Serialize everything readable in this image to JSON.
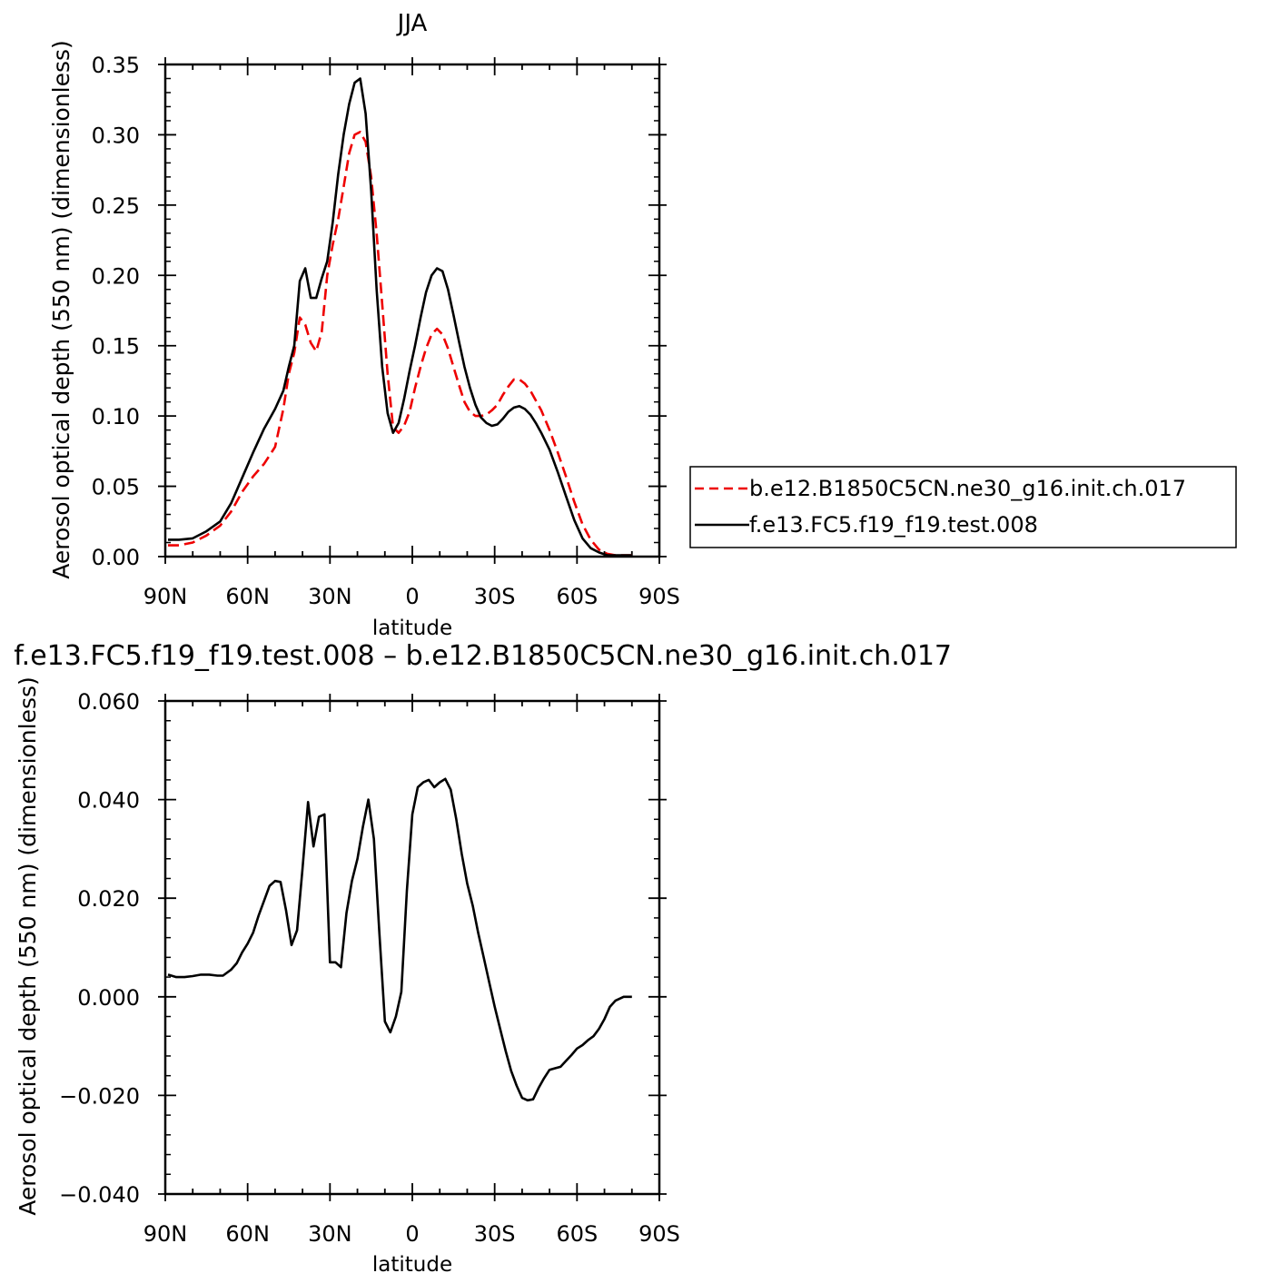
{
  "chart_data": [
    {
      "type": "line",
      "title": "JJA",
      "xlabel": "latitude",
      "ylabel": "Aerosol optical depth (550 nm) (dimensionless)",
      "xlim": [
        90,
        -90
      ],
      "ylim": [
        0,
        0.35
      ],
      "x_ticks": [
        90,
        60,
        30,
        0,
        -30,
        -60,
        -90
      ],
      "x_tick_labels": [
        "90N",
        "60N",
        "30N",
        "0",
        "30S",
        "60S",
        "90S"
      ],
      "y_ticks": [
        0,
        0.05,
        0.1,
        0.15,
        0.2,
        0.25,
        0.3,
        0.35
      ],
      "y_tick_labels": [
        "0.00",
        "0.05",
        "0.10",
        "0.15",
        "0.20",
        "0.25",
        "0.30",
        "0.35"
      ],
      "legend_position": "right",
      "series": [
        {
          "name": "b.e12.B1850C5CN.ne30_g16.init.ch.017",
          "color": "#ee0000",
          "dash": "dashed",
          "x": [
            89,
            85,
            80,
            75,
            70,
            66,
            62,
            58,
            54,
            50,
            47,
            45,
            43,
            41,
            39,
            37,
            35,
            33,
            31,
            29,
            27,
            25,
            23,
            21,
            19,
            17,
            15,
            13,
            11,
            9,
            7,
            5,
            3,
            1,
            -1,
            -3,
            -5,
            -7,
            -9,
            -11,
            -13,
            -15,
            -17,
            -19,
            -21,
            -23,
            -25,
            -27,
            -29,
            -31,
            -33,
            -35,
            -37,
            -39,
            -41,
            -43,
            -45,
            -47,
            -50,
            -53,
            -56,
            -59,
            -62,
            -65,
            -68,
            -71,
            -74,
            -77,
            -80
          ],
          "y": [
            0.008,
            0.008,
            0.01,
            0.015,
            0.022,
            0.032,
            0.046,
            0.057,
            0.066,
            0.078,
            0.105,
            0.13,
            0.145,
            0.17,
            0.165,
            0.152,
            0.146,
            0.16,
            0.2,
            0.222,
            0.24,
            0.263,
            0.287,
            0.3,
            0.302,
            0.295,
            0.27,
            0.23,
            0.18,
            0.13,
            0.092,
            0.088,
            0.093,
            0.103,
            0.12,
            0.135,
            0.148,
            0.158,
            0.162,
            0.158,
            0.148,
            0.135,
            0.122,
            0.11,
            0.103,
            0.1,
            0.1,
            0.101,
            0.104,
            0.108,
            0.115,
            0.121,
            0.126,
            0.126,
            0.123,
            0.118,
            0.111,
            0.104,
            0.09,
            0.074,
            0.057,
            0.039,
            0.023,
            0.012,
            0.005,
            0.002,
            0.001,
            0.001,
            0.001
          ]
        },
        {
          "name": "f.e13.FC5.f19_f19.test.008",
          "color": "#000000",
          "dash": "solid",
          "x": [
            89,
            85,
            80,
            75,
            70,
            66,
            62,
            58,
            54,
            50,
            47,
            45,
            43,
            41,
            39,
            37,
            35,
            33,
            31,
            29,
            27,
            25,
            23,
            21,
            19,
            17,
            15,
            13,
            11,
            9,
            7,
            5,
            3,
            1,
            -1,
            -3,
            -5,
            -7,
            -9,
            -11,
            -13,
            -15,
            -17,
            -19,
            -21,
            -23,
            -25,
            -27,
            -29,
            -31,
            -33,
            -35,
            -37,
            -39,
            -41,
            -43,
            -45,
            -47,
            -50,
            -53,
            -56,
            -59,
            -62,
            -65,
            -68,
            -71,
            -74,
            -77,
            -80
          ],
          "y": [
            0.012,
            0.012,
            0.013,
            0.018,
            0.025,
            0.038,
            0.056,
            0.074,
            0.091,
            0.105,
            0.118,
            0.135,
            0.15,
            0.196,
            0.205,
            0.184,
            0.184,
            0.198,
            0.21,
            0.238,
            0.272,
            0.3,
            0.322,
            0.337,
            0.34,
            0.315,
            0.26,
            0.19,
            0.135,
            0.102,
            0.088,
            0.095,
            0.112,
            0.132,
            0.15,
            0.17,
            0.188,
            0.2,
            0.205,
            0.203,
            0.19,
            0.172,
            0.153,
            0.135,
            0.12,
            0.108,
            0.099,
            0.095,
            0.093,
            0.094,
            0.098,
            0.103,
            0.106,
            0.107,
            0.105,
            0.101,
            0.095,
            0.088,
            0.076,
            0.06,
            0.043,
            0.026,
            0.013,
            0.006,
            0.003,
            0.001,
            0.001,
            0.001,
            0.001
          ]
        }
      ]
    },
    {
      "type": "line",
      "title": "f.e13.FC5.f19_f19.test.008 – b.e12.B1850C5CN.ne30_g16.init.ch.017",
      "xlabel": "latitude",
      "ylabel": "Aerosol optical depth (550 nm) (dimensionless)",
      "xlim": [
        90,
        -90
      ],
      "ylim": [
        -0.04,
        0.06
      ],
      "x_ticks": [
        90,
        60,
        30,
        0,
        -30,
        -60,
        -90
      ],
      "x_tick_labels": [
        "90N",
        "60N",
        "30N",
        "0",
        "30S",
        "60S",
        "90S"
      ],
      "y_ticks": [
        -0.04,
        -0.02,
        0,
        0.02,
        0.04,
        0.06
      ],
      "y_tick_labels": [
        "−0.040",
        "−0.020",
        "0.000",
        "0.020",
        "0.040",
        "0.060"
      ],
      "series": [
        {
          "color": "#000000",
          "dash": "solid",
          "x": [
            89,
            86,
            83,
            80,
            77,
            74,
            71,
            69,
            66,
            64,
            62,
            60,
            58,
            56,
            54,
            52,
            50,
            48,
            46,
            44,
            42,
            40,
            38,
            36,
            34,
            32,
            30,
            28,
            26,
            24,
            22,
            20,
            18,
            16,
            14,
            12,
            10,
            8,
            6,
            4,
            2,
            0,
            -2,
            -4,
            -6,
            -8,
            -10,
            -12,
            -14,
            -16,
            -18,
            -20,
            -22,
            -24,
            -26,
            -28,
            -30,
            -32,
            -34,
            -36,
            -38,
            -40,
            -42,
            -44,
            -46,
            -48,
            -50,
            -52,
            -54,
            -56,
            -58,
            -60,
            -62,
            -64,
            -66,
            -68,
            -70,
            -72,
            -74,
            -77,
            -80
          ],
          "y": [
            0.0045,
            0.004,
            0.004,
            0.0042,
            0.0045,
            0.0045,
            0.0043,
            0.0043,
            0.0055,
            0.0068,
            0.009,
            0.0108,
            0.013,
            0.0165,
            0.0195,
            0.0225,
            0.0235,
            0.0233,
            0.0175,
            0.0105,
            0.0135,
            0.026,
            0.0395,
            0.0305,
            0.0365,
            0.037,
            0.007,
            0.007,
            0.006,
            0.017,
            0.0235,
            0.028,
            0.0345,
            0.04,
            0.032,
            0.013,
            -0.005,
            -0.0072,
            -0.004,
            0.001,
            0.0215,
            0.037,
            0.0425,
            0.0435,
            0.044,
            0.0425,
            0.0435,
            0.0442,
            0.042,
            0.036,
            0.029,
            0.023,
            0.0185,
            0.013,
            0.008,
            0.003,
            -0.002,
            -0.0065,
            -0.011,
            -0.015,
            -0.018,
            -0.0205,
            -0.021,
            -0.0208,
            -0.0185,
            -0.0165,
            -0.0148,
            -0.0145,
            -0.0142,
            -0.013,
            -0.0118,
            -0.0105,
            -0.0098,
            -0.0088,
            -0.008,
            -0.0065,
            -0.0045,
            -0.002,
            -0.0008,
            0.0,
            0.0
          ]
        }
      ]
    }
  ]
}
